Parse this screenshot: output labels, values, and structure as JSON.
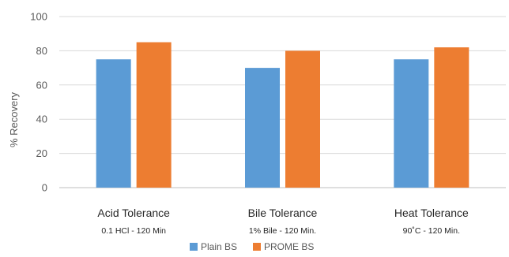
{
  "chart_data": {
    "type": "bar",
    "categories": [
      "Acid Tolerance",
      "Bile Tolerance",
      "Heat Tolerance"
    ],
    "category_sublabels": [
      "0.1 HCl - 120 Min",
      "1% Bile - 120 Min.",
      "90˚C - 120 Min."
    ],
    "series": [
      {
        "name": "Plain BS",
        "values": [
          75,
          70,
          75
        ],
        "color": "#5B9BD5"
      },
      {
        "name": "PROME BS",
        "values": [
          85,
          80,
          82
        ],
        "color": "#ED7D31"
      }
    ],
    "title": "",
    "xlabel": "",
    "ylabel": "% Recovery",
    "ylim": [
      0,
      100
    ],
    "yticks": [
      0,
      20,
      40,
      60,
      80,
      100
    ],
    "grid": true,
    "legend_position": "bottom"
  }
}
